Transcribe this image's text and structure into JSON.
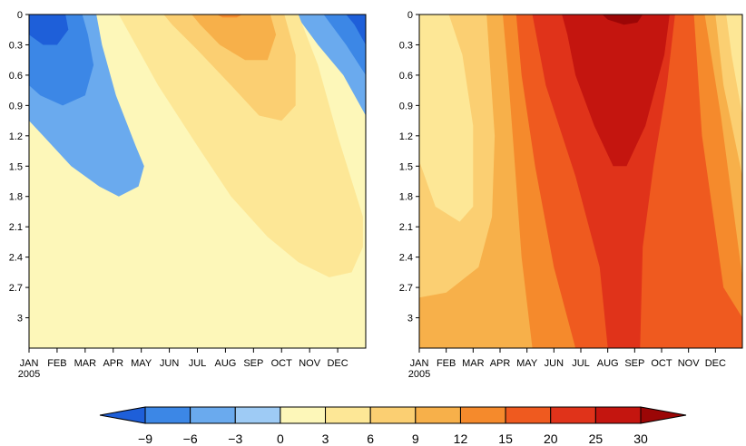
{
  "chart_data": {
    "type": "heatmap",
    "panels": [
      {
        "name": "",
        "fill": "#fdf7b9",
        "contours": [
          {
            "level": -3,
            "pts": [
              [
                0,
                0
              ],
              [
                2.4,
                0
              ],
              [
                2.6,
                0.3
              ],
              [
                3.1,
                0.8
              ],
              [
                3.8,
                1.3
              ],
              [
                4.1,
                1.5
              ],
              [
                3.9,
                1.7
              ],
              [
                3.2,
                1.8
              ],
              [
                2.5,
                1.7
              ],
              [
                1.5,
                1.5
              ],
              [
                0.5,
                1.2
              ],
              [
                0,
                1.05
              ]
            ]
          },
          {
            "level": -3,
            "pts": [
              [
                9.5,
                0
              ],
              [
                12,
                0
              ],
              [
                12,
                1.0
              ],
              [
                11.2,
                0.6
              ],
              [
                10.3,
                0.3
              ]
            ]
          },
          {
            "level": -6,
            "pts": [
              [
                0,
                0
              ],
              [
                1.9,
                0
              ],
              [
                2.1,
                0.2
              ],
              [
                2.3,
                0.5
              ],
              [
                2.0,
                0.8
              ],
              [
                1.2,
                0.9
              ],
              [
                0.4,
                0.8
              ],
              [
                0,
                0.7
              ]
            ]
          },
          {
            "level": -6,
            "pts": [
              [
                10.5,
                0
              ],
              [
                12,
                0
              ],
              [
                12,
                0.6
              ],
              [
                11.3,
                0.3
              ]
            ]
          },
          {
            "level": -9,
            "pts": [
              [
                0,
                0
              ],
              [
                1.3,
                0
              ],
              [
                1.4,
                0.15
              ],
              [
                1.0,
                0.3
              ],
              [
                0.5,
                0.3
              ],
              [
                0,
                0.2
              ]
            ]
          },
          {
            "level": -9,
            "pts": [
              [
                11.3,
                0
              ],
              [
                12,
                0
              ],
              [
                12,
                0.3
              ],
              [
                11.6,
                0.1
              ]
            ]
          },
          {
            "level": 3,
            "pts": [
              [
                3.2,
                0
              ],
              [
                9.6,
                0
              ],
              [
                10.3,
                0.5
              ],
              [
                11.0,
                1.2
              ],
              [
                11.9,
                2.0
              ],
              [
                11.9,
                2.3
              ],
              [
                11.5,
                2.55
              ],
              [
                10.7,
                2.6
              ],
              [
                9.6,
                2.45
              ],
              [
                8.5,
                2.2
              ],
              [
                7.2,
                1.8
              ],
              [
                6.0,
                1.3
              ],
              [
                4.6,
                0.7
              ],
              [
                3.6,
                0.2
              ]
            ]
          },
          {
            "level": 6,
            "pts": [
              [
                4.8,
                0
              ],
              [
                9.1,
                0
              ],
              [
                9.5,
                0.4
              ],
              [
                9.5,
                0.9
              ],
              [
                9.0,
                1.05
              ],
              [
                8.2,
                1.0
              ],
              [
                7.2,
                0.7
              ],
              [
                6.0,
                0.35
              ],
              [
                5.1,
                0.1
              ]
            ]
          },
          {
            "level": 9,
            "pts": [
              [
                5.8,
                0
              ],
              [
                8.6,
                0
              ],
              [
                8.8,
                0.2
              ],
              [
                8.5,
                0.45
              ],
              [
                7.7,
                0.45
              ],
              [
                6.8,
                0.3
              ],
              [
                6.1,
                0.1
              ]
            ]
          },
          {
            "level": 12,
            "pts": [
              [
                6.7,
                0
              ],
              [
                7.6,
                0
              ],
              [
                7.4,
                0.03
              ],
              [
                6.9,
                0.03
              ]
            ]
          }
        ]
      },
      {
        "name": "",
        "fill": "#fdf7b9",
        "contours": [
          {
            "level": 3,
            "pts": [
              [
                0,
                0
              ],
              [
                3.4,
                0
              ],
              [
                3.4,
                3.3
              ],
              [
                0,
                3.3
              ]
            ]
          },
          {
            "level": 3,
            "pts": [
              [
                11,
                0
              ],
              [
                12,
                0
              ],
              [
                12,
                3.3
              ],
              [
                11,
                3.3
              ]
            ]
          },
          {
            "level": 6,
            "pts": [
              [
                1.1,
                0
              ],
              [
                11.4,
                0
              ],
              [
                11.6,
                0.4
              ],
              [
                12,
                1.0
              ],
              [
                12,
                3.3
              ],
              [
                0,
                3.3
              ],
              [
                0,
                1.45
              ],
              [
                0.6,
                1.9
              ],
              [
                1.5,
                2.05
              ],
              [
                2.0,
                1.9
              ],
              [
                2.0,
                1.1
              ],
              [
                1.6,
                0.4
              ]
            ]
          },
          {
            "level": 9,
            "pts": [
              [
                2.5,
                0
              ],
              [
                11.0,
                0
              ],
              [
                11.3,
                0.7
              ],
              [
                12,
                1.6
              ],
              [
                12,
                3.3
              ],
              [
                0,
                3.3
              ],
              [
                0,
                2.8
              ],
              [
                1.0,
                2.75
              ],
              [
                2.2,
                2.5
              ],
              [
                2.7,
                2.0
              ],
              [
                2.8,
                1.2
              ]
            ]
          },
          {
            "level": 12,
            "pts": [
              [
                3.1,
                0
              ],
              [
                10.6,
                0
              ],
              [
                11.2,
                1.0
              ],
              [
                12,
                2.6
              ],
              [
                12,
                3.3
              ],
              [
                4.2,
                3.3
              ],
              [
                3.8,
                2.4
              ],
              [
                3.5,
                1.3
              ],
              [
                3.3,
                0.6
              ]
            ]
          },
          {
            "level": 15,
            "pts": [
              [
                3.6,
                0
              ],
              [
                10.2,
                0
              ],
              [
                10.5,
                1.2
              ],
              [
                11.3,
                2.7
              ],
              [
                12,
                3.0
              ],
              [
                12,
                3.3
              ],
              [
                5.8,
                3.3
              ],
              [
                5.0,
                2.5
              ],
              [
                4.3,
                1.5
              ],
              [
                3.8,
                0.6
              ]
            ]
          },
          {
            "level": 20,
            "pts": [
              [
                4.2,
                0
              ],
              [
                9.5,
                0
              ],
              [
                9.2,
                0.7
              ],
              [
                8.7,
                1.5
              ],
              [
                8.3,
                2.3
              ],
              [
                8.2,
                3.3
              ],
              [
                7.0,
                3.3
              ],
              [
                6.7,
                2.5
              ],
              [
                5.8,
                1.6
              ],
              [
                4.7,
                0.7
              ]
            ]
          },
          {
            "level": 25,
            "pts": [
              [
                5.3,
                0
              ],
              [
                9.3,
                0
              ],
              [
                9.1,
                0.4
              ],
              [
                8.4,
                1.1
              ],
              [
                7.7,
                1.5
              ],
              [
                7.2,
                1.5
              ],
              [
                6.5,
                1.1
              ],
              [
                5.8,
                0.6
              ],
              [
                5.5,
                0.2
              ]
            ]
          },
          {
            "level": 30,
            "pts": [
              [
                6.8,
                0
              ],
              [
                8.3,
                0
              ],
              [
                8.1,
                0.08
              ],
              [
                7.6,
                0.1
              ],
              [
                7.0,
                0.05
              ]
            ]
          }
        ]
      }
    ],
    "x_axis": {
      "ticks": [
        "JAN",
        "FEB",
        "MAR",
        "APR",
        "MAY",
        "JUN",
        "JUL",
        "AUG",
        "SEP",
        "OCT",
        "NOV",
        "DEC"
      ],
      "year_label": "2005",
      "range": [
        0,
        12
      ]
    },
    "y_axis": {
      "ticks": [
        "0",
        "0.3",
        "0.6",
        "0.9",
        "1.2",
        "1.5",
        "1.8",
        "2.1",
        "2.4",
        "2.7",
        "3"
      ],
      "range": [
        0,
        3.3
      ],
      "inverted": true
    },
    "colorbar": {
      "labels": [
        "−9",
        "−6",
        "−3",
        "0",
        "3",
        "6",
        "9",
        "12",
        "15",
        "20",
        "25",
        "30"
      ],
      "levels": [
        -9,
        -6,
        -3,
        0,
        3,
        6,
        9,
        12,
        15,
        20,
        25,
        30
      ],
      "colors": [
        "#1e5fd9",
        "#3c87e6",
        "#6aaaee",
        "#9ecbf5",
        "#fdf7b9",
        "#fde796",
        "#fbcf72",
        "#f7b04a",
        "#f58a2c",
        "#ef5a1f",
        "#e0331a",
        "#c4150f",
        "#9b0606"
      ]
    }
  }
}
